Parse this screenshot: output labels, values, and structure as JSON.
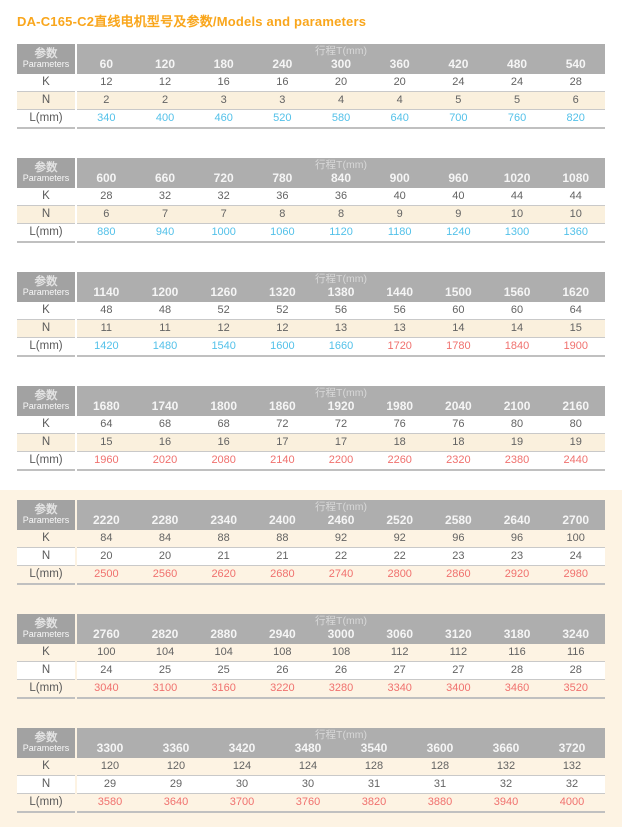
{
  "page": {
    "title": "DA-C165-C2直线电机型号及参数/Models and parameters"
  },
  "colors": {
    "title_orange": "#f9a61c",
    "header_gray_left": "#a2a2a2",
    "header_gray_main": "#aeaeae",
    "band_cream": "#faf0dd",
    "band_white": "#ffffff",
    "page_bottom_cream": "#fdf3e3",
    "blue": "#53c1e9",
    "red": "#f0716e"
  },
  "table_header": {
    "param_label_cn": "参数",
    "param_label_en": "Parameters",
    "stroke_label": "行程T(mm)"
  },
  "row_labels": {
    "k": "K",
    "n": "N",
    "l": "L(mm)"
  },
  "tables": [
    {
      "strokes": [
        "60",
        "120",
        "180",
        "240",
        "300",
        "360",
        "420",
        "480",
        "540"
      ],
      "k": [
        "12",
        "12",
        "16",
        "16",
        "20",
        "20",
        "24",
        "24",
        "28"
      ],
      "n": [
        "2",
        "2",
        "3",
        "3",
        "4",
        "4",
        "5",
        "5",
        "6"
      ],
      "l": [
        "340",
        "400",
        "460",
        "520",
        "580",
        "640",
        "700",
        "760",
        "820"
      ],
      "l_colors": [
        "blue",
        "blue",
        "blue",
        "blue",
        "blue",
        "blue",
        "blue",
        "blue",
        "blue"
      ],
      "band": "band_cream"
    },
    {
      "strokes": [
        "600",
        "660",
        "720",
        "780",
        "840",
        "900",
        "960",
        "1020",
        "1080"
      ],
      "k": [
        "28",
        "32",
        "32",
        "36",
        "36",
        "40",
        "40",
        "44",
        "44"
      ],
      "n": [
        "6",
        "7",
        "7",
        "8",
        "8",
        "9",
        "9",
        "10",
        "10"
      ],
      "l": [
        "880",
        "940",
        "1000",
        "1060",
        "1120",
        "1180",
        "1240",
        "1300",
        "1360"
      ],
      "l_colors": [
        "blue",
        "blue",
        "blue",
        "blue",
        "blue",
        "blue",
        "blue",
        "blue",
        "blue"
      ],
      "band": "band_cream"
    },
    {
      "strokes": [
        "1140",
        "1200",
        "1260",
        "1320",
        "1380",
        "1440",
        "1500",
        "1560",
        "1620"
      ],
      "k": [
        "48",
        "48",
        "52",
        "52",
        "56",
        "56",
        "60",
        "60",
        "64"
      ],
      "n": [
        "11",
        "11",
        "12",
        "12",
        "13",
        "13",
        "14",
        "14",
        "15"
      ],
      "l": [
        "1420",
        "1480",
        "1540",
        "1600",
        "1660",
        "1720",
        "1780",
        "1840",
        "1900"
      ],
      "l_colors": [
        "blue",
        "blue",
        "blue",
        "blue",
        "blue",
        "red",
        "red",
        "red",
        "red"
      ],
      "band": "band_cream"
    },
    {
      "strokes": [
        "1680",
        "1740",
        "1800",
        "1860",
        "1920",
        "1980",
        "2040",
        "2100",
        "2160"
      ],
      "k": [
        "64",
        "68",
        "68",
        "72",
        "72",
        "76",
        "76",
        "80",
        "80"
      ],
      "n": [
        "15",
        "16",
        "16",
        "17",
        "17",
        "18",
        "18",
        "19",
        "19"
      ],
      "l": [
        "1960",
        "2020",
        "2080",
        "2140",
        "2200",
        "2260",
        "2320",
        "2380",
        "2440"
      ],
      "l_colors": [
        "red",
        "red",
        "red",
        "red",
        "red",
        "red",
        "red",
        "red",
        "red"
      ],
      "band": "band_cream"
    },
    {
      "strokes": [
        "2220",
        "2280",
        "2340",
        "2400",
        "2460",
        "2520",
        "2580",
        "2640",
        "2700"
      ],
      "k": [
        "84",
        "84",
        "88",
        "88",
        "92",
        "92",
        "96",
        "96",
        "100"
      ],
      "n": [
        "20",
        "20",
        "21",
        "21",
        "22",
        "22",
        "23",
        "23",
        "24"
      ],
      "l": [
        "2500",
        "2560",
        "2620",
        "2680",
        "2740",
        "2800",
        "2860",
        "2920",
        "2980"
      ],
      "l_colors": [
        "red",
        "red",
        "red",
        "red",
        "red",
        "red",
        "red",
        "red",
        "red"
      ],
      "band": "band_white"
    },
    {
      "strokes": [
        "2760",
        "2820",
        "2880",
        "2940",
        "3000",
        "3060",
        "3120",
        "3180",
        "3240"
      ],
      "k": [
        "100",
        "104",
        "104",
        "108",
        "108",
        "112",
        "112",
        "116",
        "116"
      ],
      "n": [
        "24",
        "25",
        "25",
        "26",
        "26",
        "27",
        "27",
        "28",
        "28"
      ],
      "l": [
        "3040",
        "3100",
        "3160",
        "3220",
        "3280",
        "3340",
        "3400",
        "3460",
        "3520"
      ],
      "l_colors": [
        "red",
        "red",
        "red",
        "red",
        "red",
        "red",
        "red",
        "red",
        "red"
      ],
      "band": "band_white"
    },
    {
      "strokes": [
        "3300",
        "3360",
        "3420",
        "3480",
        "3540",
        "3600",
        "3660",
        "3720"
      ],
      "k": [
        "120",
        "120",
        "124",
        "124",
        "128",
        "128",
        "132",
        "132"
      ],
      "n": [
        "29",
        "29",
        "30",
        "30",
        "31",
        "31",
        "32",
        "32"
      ],
      "l": [
        "3580",
        "3640",
        "3700",
        "3760",
        "3820",
        "3880",
        "3940",
        "4000"
      ],
      "l_colors": [
        "red",
        "red",
        "red",
        "red",
        "red",
        "red",
        "red",
        "red"
      ],
      "band": "band_white"
    }
  ]
}
